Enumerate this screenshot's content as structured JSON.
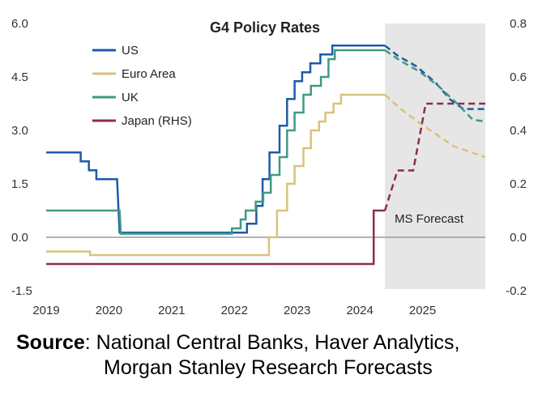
{
  "chart_data": {
    "type": "line",
    "title": "G4 Policy Rates",
    "x_ticks": [
      "2019",
      "2020",
      "2021",
      "2022",
      "2023",
      "2024",
      "2025"
    ],
    "y_left_ticks": [
      "6.0",
      "4.5",
      "3.0",
      "1.5",
      "0.0",
      "-1.5"
    ],
    "y_right_ticks": [
      "0.8",
      "0.6",
      "0.4",
      "0.2",
      "0.0",
      "-0.2"
    ],
    "ylim_left": [
      -1.5,
      6.0
    ],
    "ylim_right": [
      -0.2,
      0.8
    ],
    "xlim": [
      2019.0,
      2026.0
    ],
    "forecast_start": 2024.4,
    "forecast_label": "MS Forecast",
    "legend_position": "top-left",
    "series": [
      {
        "name": "US",
        "color": "#1f5aa6",
        "axis": "left",
        "values": [
          [
            2019.0,
            2.38
          ],
          [
            2019.55,
            2.38
          ],
          [
            2019.55,
            2.13
          ],
          [
            2019.68,
            2.13
          ],
          [
            2019.68,
            1.88
          ],
          [
            2019.8,
            1.88
          ],
          [
            2019.8,
            1.63
          ],
          [
            2020.13,
            1.63
          ],
          [
            2020.17,
            0.13
          ],
          [
            2022.2,
            0.13
          ],
          [
            2022.2,
            0.38
          ],
          [
            2022.35,
            0.38
          ],
          [
            2022.35,
            0.88
          ],
          [
            2022.45,
            0.88
          ],
          [
            2022.45,
            1.63
          ],
          [
            2022.56,
            1.63
          ],
          [
            2022.56,
            2.38
          ],
          [
            2022.72,
            2.38
          ],
          [
            2022.72,
            3.13
          ],
          [
            2022.84,
            3.13
          ],
          [
            2022.84,
            3.88
          ],
          [
            2022.96,
            3.88
          ],
          [
            2022.96,
            4.38
          ],
          [
            2023.08,
            4.38
          ],
          [
            2023.08,
            4.63
          ],
          [
            2023.21,
            4.63
          ],
          [
            2023.21,
            4.88
          ],
          [
            2023.37,
            4.88
          ],
          [
            2023.37,
            5.13
          ],
          [
            2023.56,
            5.13
          ],
          [
            2023.56,
            5.38
          ],
          [
            2024.4,
            5.38
          ],
          [
            2024.6,
            5.1
          ],
          [
            2024.9,
            4.8
          ],
          [
            2025.2,
            4.35
          ],
          [
            2025.45,
            3.85
          ],
          [
            2025.65,
            3.6
          ],
          [
            2026.0,
            3.6
          ]
        ]
      },
      {
        "name": "Euro Area",
        "color": "#d9c27a",
        "axis": "left",
        "values": [
          [
            2019.0,
            -0.4
          ],
          [
            2019.7,
            -0.4
          ],
          [
            2019.7,
            -0.5
          ],
          [
            2022.55,
            -0.5
          ],
          [
            2022.55,
            0.0
          ],
          [
            2022.68,
            0.0
          ],
          [
            2022.68,
            0.75
          ],
          [
            2022.84,
            0.75
          ],
          [
            2022.84,
            1.5
          ],
          [
            2022.96,
            1.5
          ],
          [
            2022.96,
            2.0
          ],
          [
            2023.1,
            2.0
          ],
          [
            2023.1,
            2.5
          ],
          [
            2023.22,
            2.5
          ],
          [
            2023.22,
            3.0
          ],
          [
            2023.35,
            3.0
          ],
          [
            2023.35,
            3.25
          ],
          [
            2023.45,
            3.25
          ],
          [
            2023.45,
            3.5
          ],
          [
            2023.58,
            3.5
          ],
          [
            2023.58,
            3.75
          ],
          [
            2023.7,
            3.75
          ],
          [
            2023.7,
            4.0
          ],
          [
            2024.4,
            4.0
          ],
          [
            2024.65,
            3.6
          ],
          [
            2025.0,
            3.15
          ],
          [
            2025.5,
            2.55
          ],
          [
            2026.0,
            2.25
          ]
        ]
      },
      {
        "name": "UK",
        "color": "#3f9a85",
        "axis": "left",
        "values": [
          [
            2019.0,
            0.75
          ],
          [
            2020.17,
            0.75
          ],
          [
            2020.19,
            0.1
          ],
          [
            2021.96,
            0.1
          ],
          [
            2021.96,
            0.25
          ],
          [
            2022.1,
            0.25
          ],
          [
            2022.1,
            0.5
          ],
          [
            2022.18,
            0.5
          ],
          [
            2022.18,
            0.75
          ],
          [
            2022.34,
            0.75
          ],
          [
            2022.34,
            1.0
          ],
          [
            2022.46,
            1.0
          ],
          [
            2022.46,
            1.25
          ],
          [
            2022.58,
            1.25
          ],
          [
            2022.58,
            1.75
          ],
          [
            2022.72,
            1.75
          ],
          [
            2022.72,
            2.25
          ],
          [
            2022.84,
            2.25
          ],
          [
            2022.84,
            3.0
          ],
          [
            2022.96,
            3.0
          ],
          [
            2022.96,
            3.5
          ],
          [
            2023.1,
            3.5
          ],
          [
            2023.1,
            4.0
          ],
          [
            2023.22,
            4.0
          ],
          [
            2023.22,
            4.25
          ],
          [
            2023.38,
            4.25
          ],
          [
            2023.38,
            4.5
          ],
          [
            2023.5,
            4.5
          ],
          [
            2023.5,
            5.0
          ],
          [
            2023.6,
            5.0
          ],
          [
            2023.6,
            5.25
          ],
          [
            2024.4,
            5.25
          ],
          [
            2024.65,
            4.95
          ],
          [
            2024.95,
            4.65
          ],
          [
            2025.25,
            4.25
          ],
          [
            2025.55,
            3.75
          ],
          [
            2025.8,
            3.3
          ],
          [
            2026.0,
            3.25
          ]
        ]
      },
      {
        "name": "Japan (RHS)",
        "color": "#8b2d4f",
        "axis": "right",
        "values": [
          [
            2019.0,
            -0.1
          ],
          [
            2024.22,
            -0.1
          ],
          [
            2024.22,
            0.1
          ],
          [
            2024.4,
            0.1
          ],
          [
            2024.6,
            0.25
          ],
          [
            2024.85,
            0.25
          ],
          [
            2025.05,
            0.5
          ],
          [
            2026.0,
            0.5
          ]
        ]
      }
    ]
  },
  "source": {
    "label": "Source",
    "line1": ": National Central Banks, Haver Analytics,",
    "line2": "Morgan Stanley Research Forecasts"
  }
}
